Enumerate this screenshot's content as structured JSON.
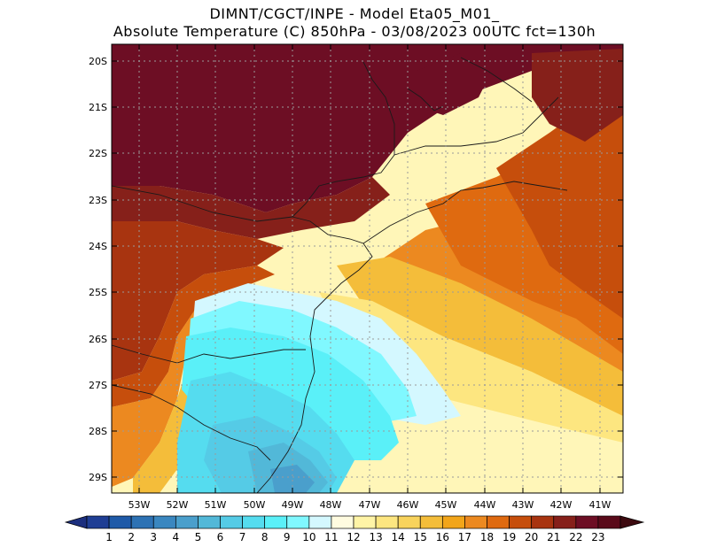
{
  "title_line1": "DIMNT/CGCT/INPE -  Model Eta05_M01_",
  "title_line2": "Absolute Temperature (C) 850hPa -  03/08/2023 00UTC fct=130h",
  "lat_labels": [
    "20S",
    "21S",
    "22S",
    "23S",
    "24S",
    "25S",
    "26S",
    "27S",
    "28S",
    "29S"
  ],
  "lon_labels": [
    "53W",
    "52W",
    "51W",
    "50W",
    "49W",
    "48W",
    "47W",
    "46W",
    "45W",
    "44W",
    "43W",
    "42W",
    "41W"
  ],
  "colorbar": {
    "labels": [
      "1",
      "2",
      "3",
      "4",
      "5",
      "6",
      "7",
      "8",
      "9",
      "10",
      "11",
      "12",
      "13",
      "14",
      "15",
      "16",
      "17",
      "18",
      "19",
      "20",
      "21",
      "22",
      "23"
    ],
    "colors": [
      "#1f3e94",
      "#1f5aa8",
      "#2d72b4",
      "#3a87c0",
      "#4a9fcc",
      "#52b8d8",
      "#55cbe6",
      "#55dcef",
      "#5af0f8",
      "#80f8ff",
      "#d4f8ff",
      "#fffbe0",
      "#fff4a6",
      "#fde680",
      "#f8d35c",
      "#f4bd3a",
      "#f2a51a",
      "#ec8920",
      "#df6a10",
      "#c64e0c",
      "#a83410",
      "#86201a",
      "#6d0e24",
      "#5a0a1a"
    ],
    "under_color": "#1c2f7e",
    "over_color": "#3d0a10"
  },
  "map_background": "#fff6b8"
}
